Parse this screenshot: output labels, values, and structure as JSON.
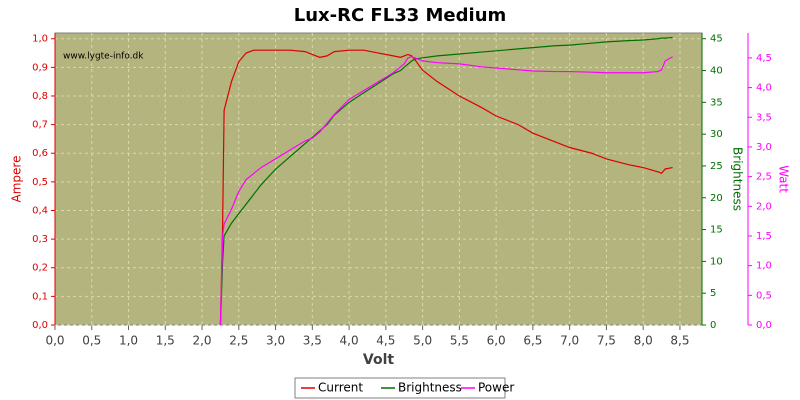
{
  "chart_data": {
    "type": "line",
    "title": "Lux-RC FL33 Medium",
    "xlabel": "Volt",
    "ylabel": "Ampere",
    "y2label": "Brightness",
    "y3label": "Watt",
    "watermark": "www.lygte-info.dk",
    "x": [
      2.25,
      2.28,
      2.3,
      2.4,
      2.5,
      2.6,
      2.7,
      2.8,
      3.0,
      3.2,
      3.4,
      3.5,
      3.6,
      3.7,
      3.8,
      4.0,
      4.2,
      4.4,
      4.6,
      4.7,
      4.75,
      4.8,
      4.85,
      4.9,
      5.0,
      5.2,
      5.5,
      5.8,
      6.0,
      6.3,
      6.5,
      6.8,
      7.0,
      7.3,
      7.5,
      7.8,
      8.0,
      8.2,
      8.25,
      8.3,
      8.4
    ],
    "series": [
      {
        "name": "Current",
        "color": "#dd0000",
        "axis": "y",
        "values": [
          0.0,
          0.35,
          0.75,
          0.85,
          0.92,
          0.95,
          0.96,
          0.96,
          0.96,
          0.96,
          0.955,
          0.945,
          0.935,
          0.94,
          0.955,
          0.96,
          0.96,
          0.95,
          0.94,
          0.935,
          0.94,
          0.945,
          0.94,
          0.925,
          0.89,
          0.85,
          0.8,
          0.76,
          0.73,
          0.7,
          0.67,
          0.64,
          0.62,
          0.6,
          0.58,
          0.56,
          0.55,
          0.535,
          0.53,
          0.545,
          0.55
        ]
      },
      {
        "name": "Brightness",
        "color": "#007000",
        "axis": "y2",
        "values": [
          0,
          10,
          14,
          16,
          17.5,
          19,
          20.5,
          22,
          24.5,
          26.5,
          28.5,
          29.5,
          30.5,
          31.5,
          33,
          35,
          36.5,
          38,
          39.5,
          40,
          40.5,
          41,
          41.5,
          41.8,
          42,
          42.3,
          42.6,
          42.9,
          43.1,
          43.4,
          43.6,
          43.9,
          44.0,
          44.3,
          44.5,
          44.7,
          44.8,
          45.0,
          45.1,
          45.1,
          45.2
        ]
      },
      {
        "name": "Power",
        "color": "#ff00ff",
        "axis": "y3",
        "values": [
          0,
          1.5,
          1.7,
          1.95,
          2.25,
          2.45,
          2.55,
          2.65,
          2.8,
          2.95,
          3.1,
          3.15,
          3.25,
          3.4,
          3.55,
          3.8,
          3.95,
          4.1,
          4.25,
          4.35,
          4.4,
          4.5,
          4.52,
          4.5,
          4.45,
          4.42,
          4.4,
          4.35,
          4.33,
          4.3,
          4.28,
          4.27,
          4.27,
          4.26,
          4.25,
          4.25,
          4.25,
          4.27,
          4.3,
          4.45,
          4.52
        ]
      }
    ],
    "xlim": [
      0,
      8.8
    ],
    "xticks": [
      {
        "value": 0,
        "label": "0,0"
      },
      {
        "value": 0.5,
        "label": "0,5"
      },
      {
        "value": 1,
        "label": "1,0"
      },
      {
        "value": 1.5,
        "label": "1,5"
      },
      {
        "value": 2,
        "label": "2,0"
      },
      {
        "value": 2.5,
        "label": "2,5"
      },
      {
        "value": 3,
        "label": "3,0"
      },
      {
        "value": 3.5,
        "label": "3,5"
      },
      {
        "value": 4,
        "label": "4,0"
      },
      {
        "value": 4.5,
        "label": "4,5"
      },
      {
        "value": 5,
        "label": "5,0"
      },
      {
        "value": 5.5,
        "label": "5,5"
      },
      {
        "value": 6,
        "label": "6,0"
      },
      {
        "value": 6.5,
        "label": "6,5"
      },
      {
        "value": 7,
        "label": "7,0"
      },
      {
        "value": 7.5,
        "label": "7,5"
      },
      {
        "value": 8,
        "label": "8,0"
      },
      {
        "value": 8.5,
        "label": "8,5"
      }
    ],
    "ylim": [
      0,
      1.02
    ],
    "yticks": [
      {
        "value": 0,
        "label": "0,0"
      },
      {
        "value": 0.1,
        "label": "0,1"
      },
      {
        "value": 0.2,
        "label": "0,2"
      },
      {
        "value": 0.3,
        "label": "0,3"
      },
      {
        "value": 0.4,
        "label": "0,4"
      },
      {
        "value": 0.5,
        "label": "0,5"
      },
      {
        "value": 0.6,
        "label": "0,6"
      },
      {
        "value": 0.7,
        "label": "0,7"
      },
      {
        "value": 0.8,
        "label": "0,8"
      },
      {
        "value": 0.9,
        "label": "0,9"
      },
      {
        "value": 1,
        "label": "1,0"
      }
    ],
    "y2lim": [
      0,
      45.9
    ],
    "y2ticks": [
      0,
      5,
      10,
      15,
      20,
      25,
      30,
      35,
      40,
      45
    ],
    "y3lim": [
      0,
      4.92
    ],
    "y3ticks": [
      {
        "value": 0,
        "label": "0,0"
      },
      {
        "value": 0.5,
        "label": "0,5"
      },
      {
        "value": 1,
        "label": "1,0"
      },
      {
        "value": 1.5,
        "label": "1,5"
      },
      {
        "value": 2,
        "label": "2,0"
      },
      {
        "value": 2.5,
        "label": "2,5"
      },
      {
        "value": 3,
        "label": "3,0"
      },
      {
        "value": 3.5,
        "label": "3,5"
      },
      {
        "value": 4,
        "label": "4,0"
      },
      {
        "value": 4.5,
        "label": "4,5"
      }
    ],
    "grid": true,
    "legend": "bottom"
  }
}
